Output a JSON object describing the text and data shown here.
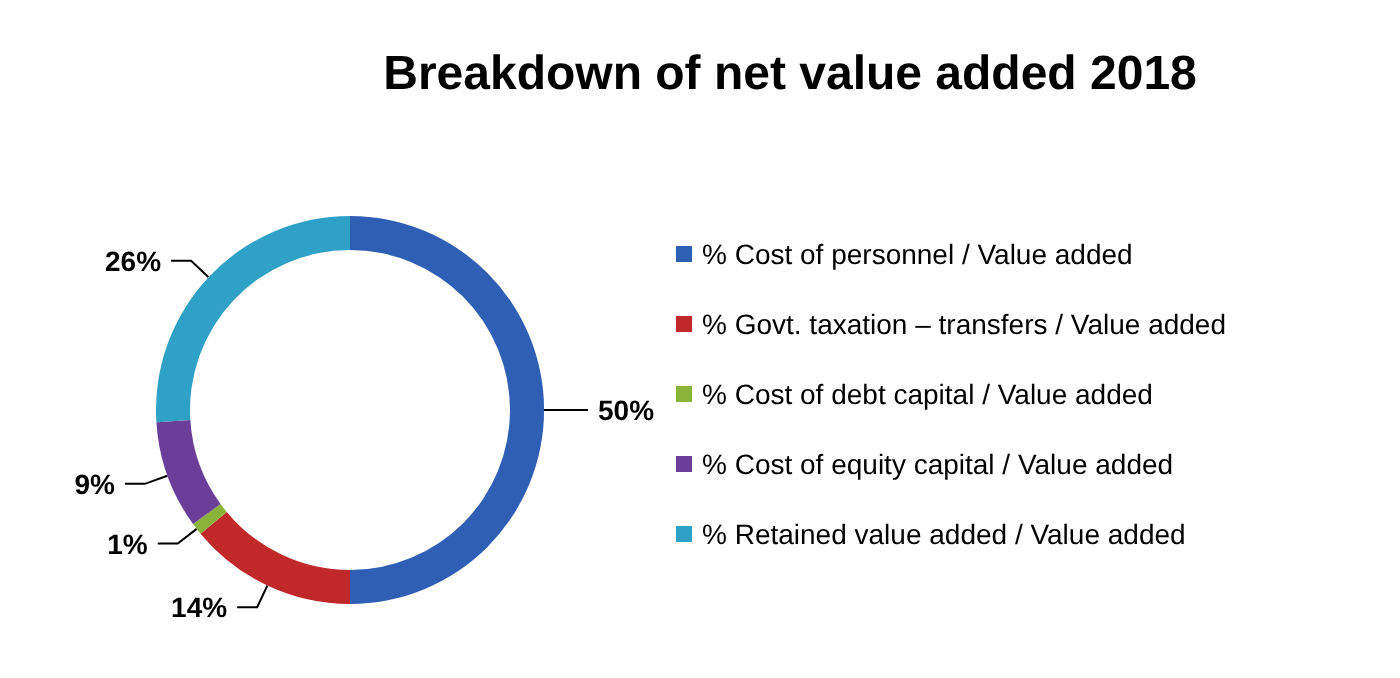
{
  "chart_data": {
    "type": "donut",
    "title": "Breakdown of net value added 2018",
    "categories": [
      "% Cost of personnel / Value added",
      "% Govt. taxation – transfers / Value added",
      "% Cost of debt capital / Value added",
      "% Cost of equity capital / Value added",
      "% Retained value added / Value added"
    ],
    "values": [
      50,
      14,
      1,
      9,
      26
    ],
    "colors": [
      "#2f5fb5",
      "#c0282a",
      "#8ab33a",
      "#6b3f99",
      "#2fa0c6"
    ],
    "value_labels": [
      "50%",
      "14%",
      "1%",
      "9%",
      "26%"
    ],
    "legend": "right"
  }
}
